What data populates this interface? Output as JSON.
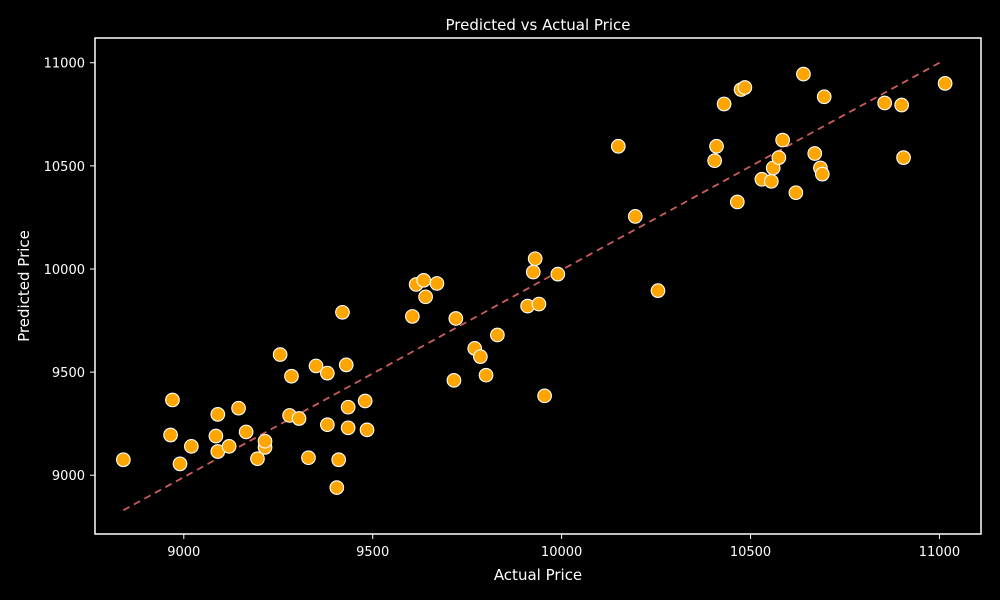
{
  "chart_data": {
    "type": "scatter",
    "title": "Predicted vs Actual Price",
    "xlabel": "Actual Price",
    "ylabel": "Predicted Price",
    "xlim": [
      8765,
      11110
    ],
    "ylim": [
      8715,
      11120
    ],
    "xticks": [
      9000,
      9500,
      10000,
      10500,
      11000
    ],
    "yticks": [
      9000,
      9500,
      10000,
      10500,
      11000
    ],
    "grid": false,
    "background_color": "#000000",
    "axes_color": "#ffffff",
    "text_color": "#ffffff",
    "point_color": "#ffa500",
    "point_edge_color": "#ffffff",
    "reference_line": {
      "style": "dashed",
      "color": "#cd5c5c",
      "from": [
        8840,
        8830
      ],
      "to": [
        11010,
        11010
      ]
    },
    "series": [
      {
        "x": [
          8840,
          8965,
          8970,
          8990,
          9020,
          9085,
          9090,
          9090,
          9120,
          9145,
          9165,
          9195,
          9215,
          9215,
          9255,
          9280,
          9285,
          9305,
          9330,
          9350,
          9380,
          9380,
          9405,
          9410,
          9420,
          9430,
          9435,
          9435,
          9480,
          9485,
          9605,
          9615,
          9635,
          9640,
          9670,
          9715,
          9720,
          9770,
          9785,
          9800,
          9830,
          9910,
          9925,
          9930,
          9940,
          9955,
          9990,
          10150,
          10195,
          10255,
          10405,
          10410,
          10430,
          10465,
          10475,
          10485,
          10530,
          10555,
          10560,
          10575,
          10585,
          10620,
          10640,
          10670,
          10685,
          10690,
          10695,
          10855,
          10900,
          10905,
          11015
        ],
        "y": [
          9075,
          9195,
          9365,
          9055,
          9140,
          9190,
          9295,
          9115,
          9140,
          9325,
          9210,
          9080,
          9135,
          9165,
          9585,
          9290,
          9480,
          9275,
          9085,
          9530,
          9245,
          9495,
          8940,
          9075,
          9790,
          9535,
          9330,
          9230,
          9360,
          9220,
          9770,
          9925,
          9945,
          9865,
          9930,
          9460,
          9760,
          9615,
          9575,
          9485,
          9680,
          9820,
          9985,
          10050,
          9830,
          9385,
          9975,
          10595,
          10255,
          9895,
          10525,
          10595,
          10800,
          10325,
          10870,
          10880,
          10435,
          10425,
          10490,
          10540,
          10625,
          10370,
          10945,
          10560,
          10490,
          10460,
          10835,
          10805,
          10795,
          10540,
          10900
        ]
      }
    ]
  }
}
